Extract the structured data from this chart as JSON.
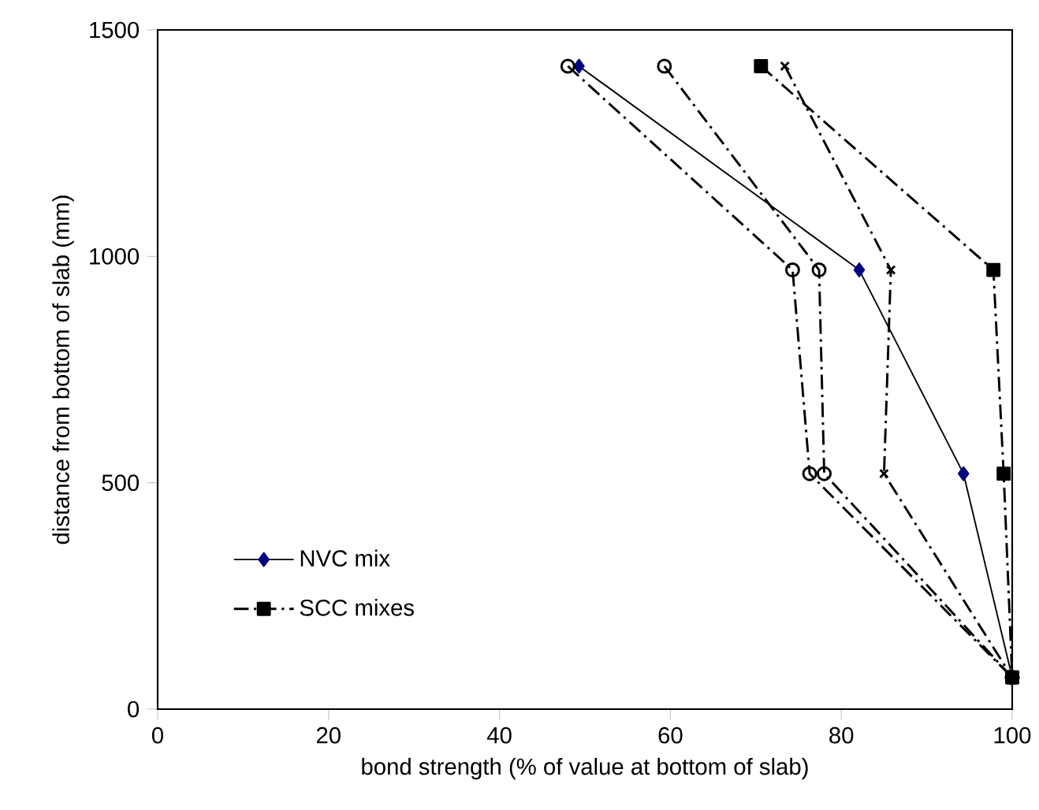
{
  "chart_data": {
    "type": "line",
    "xlabel": "bond strength (% of value at bottom of slab)",
    "ylabel": "distance from bottom of slab (mm)",
    "xlim": [
      0,
      100
    ],
    "ylim": [
      0,
      1500
    ],
    "xticks": [
      0,
      20,
      40,
      60,
      80,
      100
    ],
    "yticks": [
      0,
      500,
      1000,
      1500
    ],
    "legend": "bottom left",
    "grid": false,
    "series": [
      {
        "name": "NVC mix",
        "color": "#000080",
        "marker": "diamond",
        "line_style": "solid",
        "x": [
          49.3,
          82.1,
          94.3,
          100
        ],
        "values": [
          1420,
          970,
          520,
          70
        ]
      },
      {
        "name": "SCC mixes",
        "color": "#000000",
        "marker": "square",
        "line_style": "dashdot",
        "x": [
          70.6,
          97.8,
          99,
          100
        ],
        "values": [
          1420,
          970,
          520,
          70
        ]
      },
      {
        "color": "#000000",
        "marker": "circle",
        "line_style": "dashdot",
        "x": [
          48,
          74.3,
          76.3,
          100
        ],
        "values": [
          1420,
          970,
          520,
          70
        ]
      },
      {
        "color": "#000000",
        "marker": "circle",
        "line_style": "dashdot",
        "x": [
          59.3,
          77.4,
          78,
          100
        ],
        "values": [
          1420,
          970,
          520,
          70
        ]
      },
      {
        "color": "#000000",
        "marker": "cross",
        "line_style": "dashdot",
        "x": [
          73.4,
          85.8,
          85,
          100
        ],
        "values": [
          1420,
          970,
          520,
          70
        ]
      }
    ]
  }
}
